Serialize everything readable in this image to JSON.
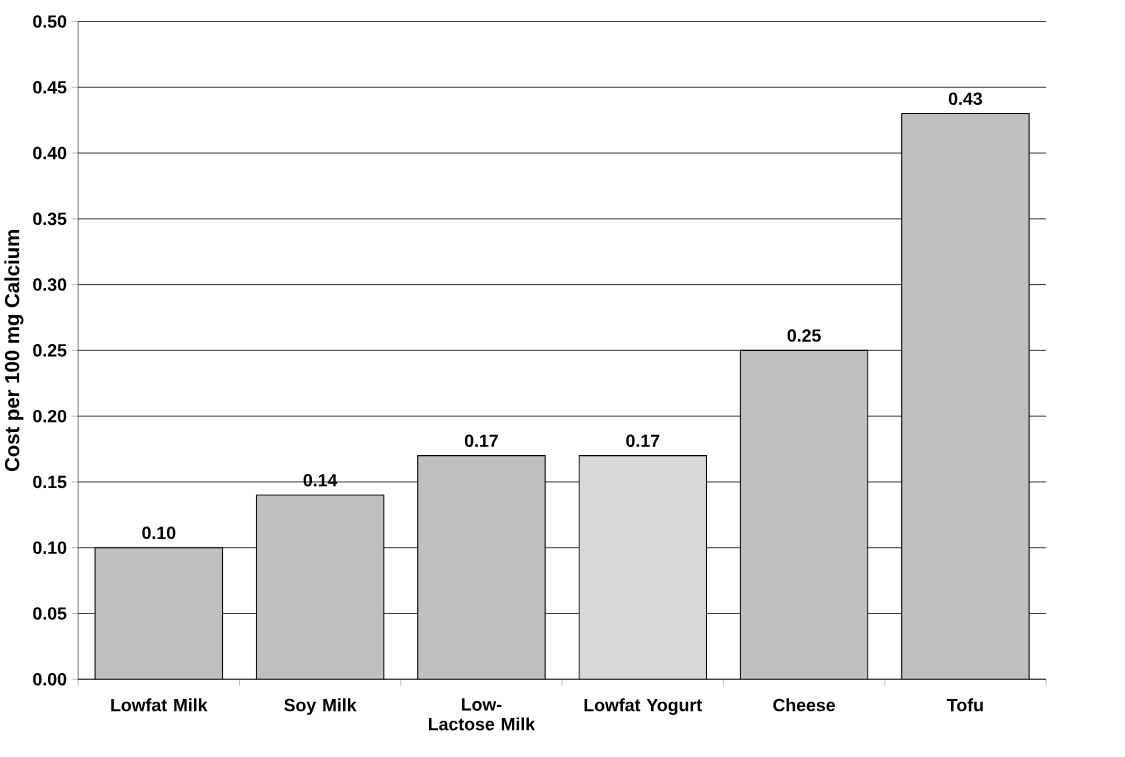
{
  "chart_data": {
    "type": "bar",
    "ylabel": "Cost per 100 mg Calcium",
    "categories": [
      "Lowfat Milk",
      "Soy Milk",
      "Low-Lactose Milk",
      "Lowfat Yogurt",
      "Cheese",
      "Tofu"
    ],
    "values": [
      0.1,
      0.14,
      0.17,
      0.17,
      0.25,
      0.43
    ],
    "value_labels": [
      "0.10",
      "0.14",
      "0.17",
      "0.17",
      "0.25",
      "0.43"
    ],
    "colors": [
      "#c0c0c0",
      "#c0c0c0",
      "#c0c0c0",
      "#d9d9d9",
      "#c0c0c0",
      "#c0c0c0"
    ],
    "ylim": [
      0,
      0.5
    ],
    "yticks": [
      {
        "value": 0,
        "label": "0.00"
      },
      {
        "value": 0.05,
        "label": "0.05"
      },
      {
        "value": 0.1,
        "label": "0.10"
      },
      {
        "value": 0.15,
        "label": "0.15"
      },
      {
        "value": 0.2,
        "label": "0.20"
      },
      {
        "value": 0.25,
        "label": "0.25"
      },
      {
        "value": 0.3,
        "label": "0.30"
      },
      {
        "value": 0.35,
        "label": "0.35"
      },
      {
        "value": 0.4,
        "label": "0.40"
      },
      {
        "value": 0.45,
        "label": "0.45"
      },
      {
        "value": 0.5,
        "label": "0.50"
      }
    ],
    "grid": "y"
  }
}
